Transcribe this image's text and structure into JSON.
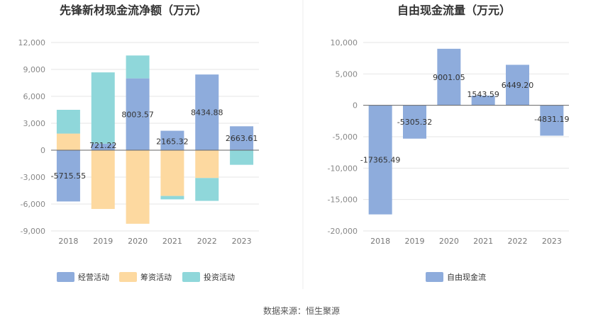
{
  "source_text": "数据来源：恒生聚源",
  "chart_data": [
    {
      "type": "bar",
      "stacked": true,
      "title": "先锋新材现金流净额（万元）",
      "categories": [
        "2018",
        "2019",
        "2020",
        "2021",
        "2022",
        "2023"
      ],
      "ylim": [
        -9000,
        12000
      ],
      "yticks": [
        12000,
        9000,
        6000,
        3000,
        0,
        -3000,
        -6000,
        -9000
      ],
      "ytick_labels": [
        "12,000",
        "9,000",
        "6,000",
        "3,000",
        "0",
        "-3,000",
        "-6,000",
        "-9,000"
      ],
      "grid": true,
      "legend_position": "bottom",
      "series": [
        {
          "name": "经营活动",
          "color": "#8eacdc",
          "values": [
            -5715.55,
            721.22,
            8003.57,
            2165.32,
            8434.88,
            2663.61
          ]
        },
        {
          "name": "筹资活动",
          "color": "#fdd9a0",
          "values": [
            1850,
            -6550,
            -8200,
            -5100,
            -3100,
            -30
          ]
        },
        {
          "name": "投资活动",
          "color": "#8fd7da",
          "values": [
            2650,
            7950,
            2550,
            -380,
            -2550,
            -1600
          ]
        }
      ],
      "data_labels": [
        "-5715.55",
        "721.22",
        "8003.57",
        "2165.32",
        "8434.88",
        "2663.61"
      ]
    },
    {
      "type": "bar",
      "title": "自由现金流量（万元）",
      "categories": [
        "2018",
        "2019",
        "2020",
        "2021",
        "2022",
        "2023"
      ],
      "ylim": [
        -20000,
        10000
      ],
      "yticks": [
        10000,
        5000,
        0,
        -5000,
        -10000,
        -15000,
        -20000
      ],
      "ytick_labels": [
        "10,000",
        "5,000",
        "0",
        "-5,000",
        "-10,000",
        "-15,000",
        "-20,000"
      ],
      "grid": true,
      "legend_position": "bottom",
      "series": [
        {
          "name": "自由现金流",
          "color": "#8eacdc",
          "values": [
            -17365.49,
            -5305.32,
            9001.05,
            1543.59,
            6449.2,
            -4831.19
          ]
        }
      ],
      "data_labels": [
        "-17365.49",
        "-5305.32",
        "9001.05",
        "1543.59",
        "6449.20",
        "-4831.19"
      ]
    }
  ]
}
